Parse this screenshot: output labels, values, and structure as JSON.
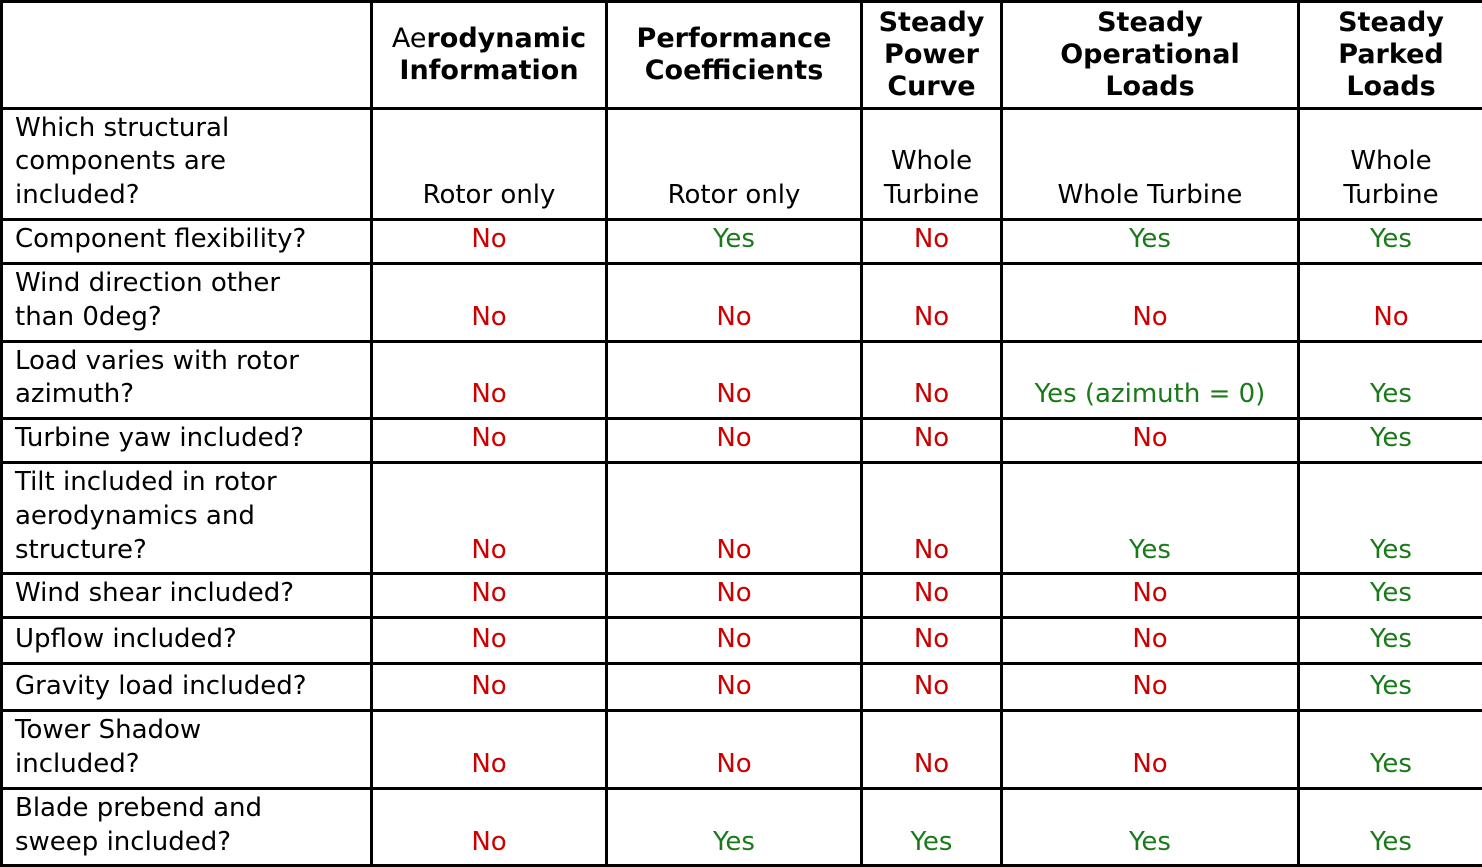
{
  "chart_data": {
    "type": "table",
    "title": "",
    "columns": [
      {
        "label": ""
      },
      {
        "label": "Aerodynamic\nInformation",
        "normal_prefix": "Ae",
        "bold_rest": "rodynamic\nInformation"
      },
      {
        "label": "Performance\nCoefficients"
      },
      {
        "label": "Steady\nPower\nCurve"
      },
      {
        "label": "Steady\nOperational\nLoads"
      },
      {
        "label": "Steady\nParked\nLoads"
      }
    ],
    "rows": [
      {
        "label": "Which structural\ncomponents are\nincluded?",
        "values": [
          "Rotor only",
          "Rotor only",
          "Whole\nTurbine",
          "Whole Turbine",
          "Whole\nTurbine"
        ]
      },
      {
        "label": "Component flexibility?",
        "values": [
          "No",
          "Yes",
          "No",
          "Yes",
          "Yes"
        ]
      },
      {
        "label": "Wind direction other\nthan 0deg?",
        "values": [
          "No",
          "No",
          "No",
          "No",
          "No"
        ]
      },
      {
        "label": "Load varies with rotor\nazimuth?",
        "values": [
          "No",
          "No",
          "No",
          "Yes (azimuth = 0)",
          "Yes"
        ]
      },
      {
        "label": "Turbine yaw included?",
        "values": [
          "No",
          "No",
          "No",
          "No",
          "Yes"
        ]
      },
      {
        "label": "Tilt included in rotor\naerodynamics and\nstructure?",
        "values": [
          "No",
          "No",
          "No",
          "Yes",
          "Yes"
        ]
      },
      {
        "label": "Wind shear included?",
        "values": [
          "No",
          "No",
          "No",
          "No",
          "Yes"
        ]
      },
      {
        "label": "Upflow included?",
        "values": [
          "No",
          "No",
          "No",
          "No",
          "Yes"
        ]
      },
      {
        "label": "Gravity load included?",
        "values": [
          "No",
          "No",
          "No",
          "No",
          "Yes"
        ]
      },
      {
        "label": "Tower Shadow\nincluded?",
        "values": [
          "No",
          "No",
          "No",
          "No",
          "Yes"
        ]
      },
      {
        "label": "Blade prebend and\nsweep included?",
        "values": [
          "No",
          "Yes",
          "Yes",
          "Yes",
          "Yes"
        ]
      }
    ],
    "colors": {
      "yes": "#1a7a1a",
      "no": "#cc0000",
      "neutral": "#000000",
      "border": "#000000",
      "background": "#ffffff"
    }
  }
}
